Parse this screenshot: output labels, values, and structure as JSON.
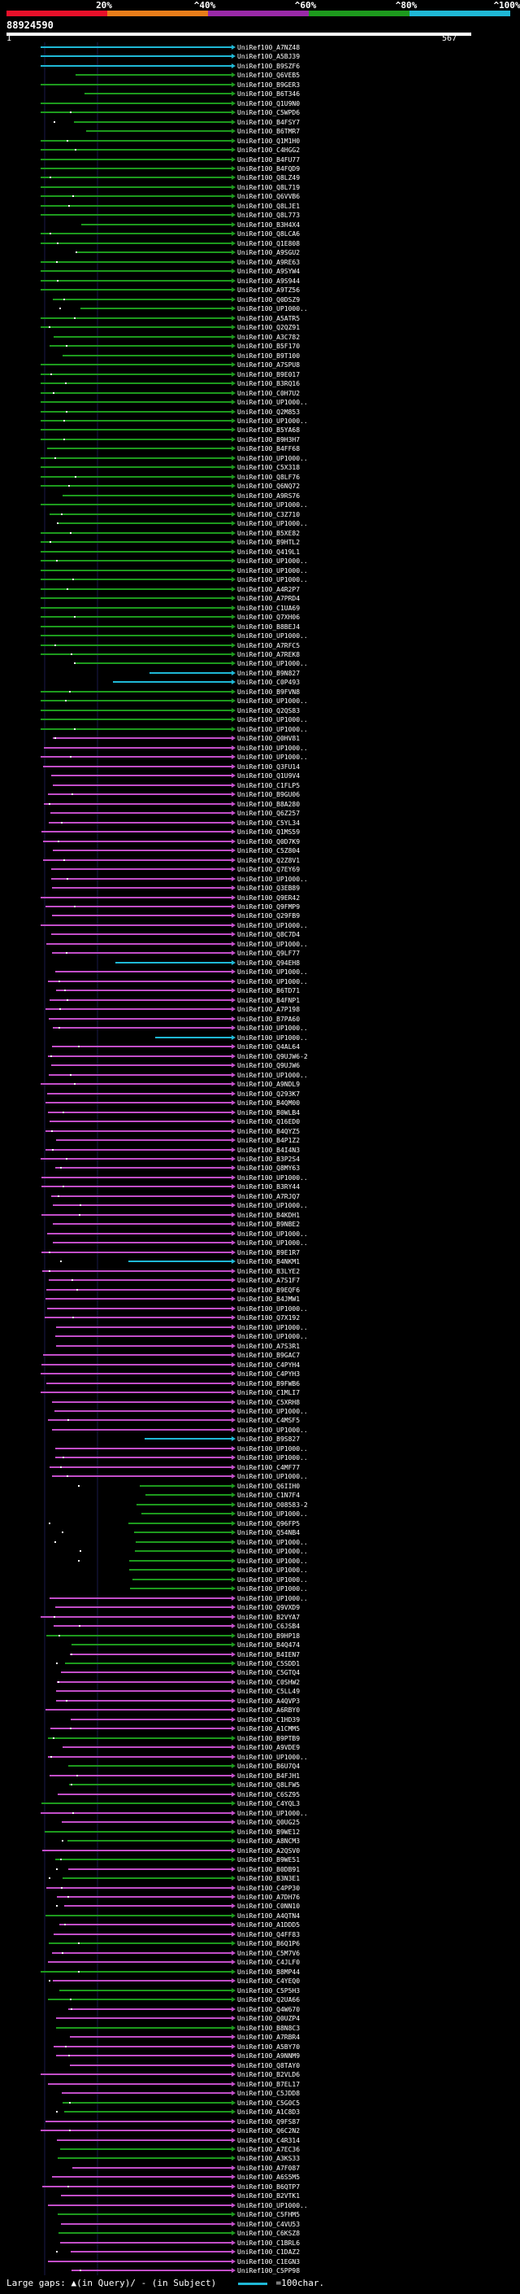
{
  "header": {
    "pct_labels": [
      "20%",
      "^40%",
      "^60%",
      "^80%",
      "^100%"
    ],
    "bands": [
      {
        "label": "0-20",
        "color": "#e8102a"
      },
      {
        "label": "20-40",
        "color": "#e87d1a"
      },
      {
        "label": "40-60",
        "color": "#9a2aa8"
      },
      {
        "label": "60-80",
        "color": "#1d9a1d"
      },
      {
        "label": "80-100",
        "color": "#1fb8d6"
      }
    ],
    "query_id": "88924590",
    "scale_start": "1",
    "scale_end": "567"
  },
  "footer": {
    "large_gaps": "Large gaps: ▲(in Query)/ - (in Subject)",
    "key_label": "=100char."
  },
  "chart_data": {
    "type": "alignment-overview",
    "query_length": 567,
    "row_labels": [
      "UniRef100_A7NZ48",
      "UniRef100_A5BJ39",
      "UniRef100_B9SZF6",
      "UniRef100_Q6VEB5",
      "UniRef100_B9GER3",
      "UniRef100_B6T346",
      "UniRef100_Q1U9N0",
      "UniRef100_C5WPD6",
      "UniRef100_B4FSY7",
      "UniRef100_B6TMR7",
      "UniRef100_Q1M1H0",
      "UniRef100_C4HGG2",
      "UniRef100_B4FU77",
      "UniRef100_B4FQD9",
      "UniRef100_Q8LZ49",
      "UniRef100_Q8L719",
      "UniRef100_Q6VVB6",
      "UniRef100_Q8LJE1",
      "UniRef100_Q8L773",
      "UniRef100_B3H4X4",
      "UniRef100_Q8LCA6",
      "UniRef100_Q1E808",
      "UniRef100_A9SGU2",
      "UniRef100_A9RE63",
      "UniRef100_A9SYW4",
      "UniRef100_A9S944",
      "UniRef100_A9TZ56",
      "UniRef100_Q0DSZ9",
      "UniRef100_UP1000..",
      "UniRef100_A5ATR5",
      "UniRef100_Q2QZ91",
      "UniRef100_A3C782",
      "UniRef100_B5F170",
      "UniRef100_B9T100",
      "UniRef100_A7SPU8",
      "UniRef100_B9E017",
      "UniRef100_B3RQ16",
      "UniRef100_C0H7U2",
      "UniRef100_UP1000..",
      "UniRef100_Q2M853",
      "UniRef100_UP1000..",
      "UniRef100_B5YA68",
      "UniRef100_B9H3H7",
      "UniRef100_B4FF68",
      "UniRef100_UP1000..",
      "UniRef100_C5X318",
      "UniRef100_Q8LF76",
      "UniRef100_Q6NQ72",
      "UniRef100_A9RS76",
      "UniRef100_UP1000..",
      "UniRef100_C3Z710",
      "UniRef100_UP1000..",
      "UniRef100_B5XE82",
      "UniRef100_B9HTL2",
      "UniRef100_Q419L1",
      "UniRef100_UP1000..",
      "UniRef100_UP1000..",
      "UniRef100_UP1000..",
      "UniRef100_A4R2P7",
      "UniRef100_A7PRD4",
      "UniRef100_C1UA69",
      "UniRef100_Q7XH06",
      "UniRef100_B8BEJ4",
      "UniRef100_UP1000..",
      "UniRef100_A7RFC5",
      "UniRef100_A7REK8",
      "UniRef100_UP1000..",
      "UniRef100_B9N827",
      "UniRef100_C0P493",
      "UniRef100_B9FVN8",
      "UniRef100_UP1000..",
      "UniRef100_Q2QS83",
      "UniRef100_UP1000..",
      "UniRef100_UP1000..",
      "UniRef100_Q0HV81",
      "UniRef100_UP1000..",
      "UniRef100_UP1000..",
      "UniRef100_Q3FU14",
      "UniRef100_Q1U9V4",
      "UniRef100_C1FLP5",
      "UniRef100_B9GU06",
      "UniRef100_B8A280",
      "UniRef100_Q6Z257",
      "UniRef100_C5YL34",
      "UniRef100_Q1MS59",
      "UniRef100_Q0D7K9",
      "UniRef100_C5Z804",
      "UniRef100_Q2Z8V1",
      "UniRef100_Q7EY69",
      "UniRef100_UP1000..",
      "UniRef100_Q3EB89",
      "UniRef100_Q9ER42",
      "UniRef100_Q9FMP9",
      "UniRef100_Q29FB9",
      "UniRef100_UP1000..",
      "UniRef100_Q8C7D4",
      "UniRef100_UP1000..",
      "UniRef100_Q9LF77",
      "UniRef100_Q94EH8",
      "UniRef100_UP1000..",
      "UniRef100_UP1000..",
      "UniRef100_B6TD71",
      "UniRef100_B4FNP1",
      "UniRef100_A7P198",
      "UniRef100_B7PA60",
      "UniRef100_UP1000..",
      "UniRef100_UP1000..",
      "UniRef100_Q4AL64",
      "UniRef100_Q9UJW6-2",
      "UniRef100_Q9UJW6",
      "UniRef100_UP1000..",
      "UniRef100_A9NDL9",
      "UniRef100_Q293K7",
      "UniRef100_B4QM00",
      "UniRef100_B0WLB4",
      "UniRef100_Q16ED0",
      "UniRef100_B4QYZ5",
      "UniRef100_B4P1Z2",
      "UniRef100_B4I4N3",
      "UniRef100_B3P2S4",
      "UniRef100_Q8MY63",
      "UniRef100_UP1000..",
      "UniRef100_B3RY44",
      "UniRef100_A7RJQ7",
      "UniRef100_UP1000..",
      "UniRef100_B4KDH1",
      "UniRef100_B9NBE2",
      "UniRef100_UP1000..",
      "UniRef100_UP1000..",
      "UniRef100_B9E1R7",
      "UniRef100_B4NKM1",
      "UniRef100_B3LYE2",
      "UniRef100_A7S1F7",
      "UniRef100_B9EQF6",
      "UniRef100_B4JMW1",
      "UniRef100_UP1000..",
      "UniRef100_Q7X192",
      "UniRef100_UP1000..",
      "UniRef100_UP1000..",
      "UniRef100_A7S3R1",
      "UniRef100_B9GAC7",
      "UniRef100_C4PYH4",
      "UniRef100_C4PYH3",
      "UniRef100_B9FWB6",
      "UniRef100_C1MLI7",
      "UniRef100_C5XRH8",
      "UniRef100_UP1000..",
      "UniRef100_C4MSF5",
      "UniRef100_UP1000..",
      "UniRef100_B9S827",
      "UniRef100_UP1000..",
      "UniRef100_UP1000..",
      "UniRef100_C4MF77",
      "UniRef100_UP1000..",
      "UniRef100_Q6IIH0",
      "UniRef100_C1N7F4",
      "UniRef100_O08583-2",
      "UniRef100_UP1000..",
      "UniRef100_Q96FP5",
      "UniRef100_Q54NB4",
      "UniRef100_UP1000..",
      "UniRef100_UP1000..",
      "UniRef100_UP1000..",
      "UniRef100_UP1000..",
      "UniRef100_UP1000..",
      "UniRef100_UP1000..",
      "UniRef100_UP1000..",
      "UniRef100_Q9VXD9",
      "UniRef100_B2VYA7",
      "UniRef100_C6JSB4",
      "UniRef100_B9HP18",
      "UniRef100_B4Q474",
      "UniRef100_B4IEN7",
      "UniRef100_C5SDD1",
      "UniRef100_C5GTQ4",
      "UniRef100_C0SHW2",
      "UniRef100_C5LL49",
      "UniRef100_A4QVP3",
      "UniRef100_A6RBY0",
      "UniRef100_C1HD39",
      "UniRef100_A1CMM5",
      "UniRef100_B9PTB9",
      "UniRef100_A9VDE9",
      "UniRef100_UP1000..",
      "UniRef100_B6U7Q4",
      "UniRef100_B4FJH1",
      "UniRef100_Q8LFW5",
      "UniRef100_C6SZ95",
      "UniRef100_C4YQL3",
      "UniRef100_UP1000..",
      "UniRef100_Q0UG25",
      "UniRef100_B9WE12",
      "UniRef100_A8NCM3",
      "UniRef100_A2QSV0",
      "UniRef100_B9WE51",
      "UniRef100_B0DB91",
      "UniRef100_B3N3E1",
      "UniRef100_C4PP30",
      "UniRef100_A7DH76",
      "UniRef100_C0NN10",
      "UniRef100_A4QTN4",
      "UniRef100_A1DDD5",
      "UniRef100_Q4FF83",
      "UniRef100_B6Q1P6",
      "UniRef100_C5M7V6",
      "UniRef100_C4JLF0",
      "UniRef100_B8MP44",
      "UniRef100_C4YEQ0",
      "UniRef100_C5P5H3",
      "UniRef100_Q2UA66",
      "UniRef100_Q4W670",
      "UniRef100_Q0UZP4",
      "UniRef100_B8N8C3",
      "UniRef100_A7RBR4",
      "UniRef100_A5BY70",
      "UniRef100_A9NNM9",
      "UniRef100_Q8TAY0",
      "UniRef100_B2VLD6",
      "UniRef100_B7EL17",
      "UniRef100_C5JDD8",
      "UniRef100_C5G0C5",
      "UniRef100_A1C8D3",
      "UniRef100_Q9FS87",
      "UniRef100_Q6C2N2",
      "UniRef100_C4R314",
      "UniRef100_A7EC36",
      "UniRef100_A3KS33",
      "UniRef100_A7F087",
      "UniRef100_A6S5M5",
      "UniRef100_B6QTP7",
      "UniRef100_B2VTK1",
      "UniRef100_UP1000..",
      "UniRef100_C5FHM5",
      "UniRef100_C4VU53",
      "UniRef100_C6KSZ8",
      "UniRef100_C1BRL6",
      "UniRef100_C1DAZ2",
      "UniRef100_C1EGN3",
      "UniRef100_C5PP98"
    ]
  }
}
